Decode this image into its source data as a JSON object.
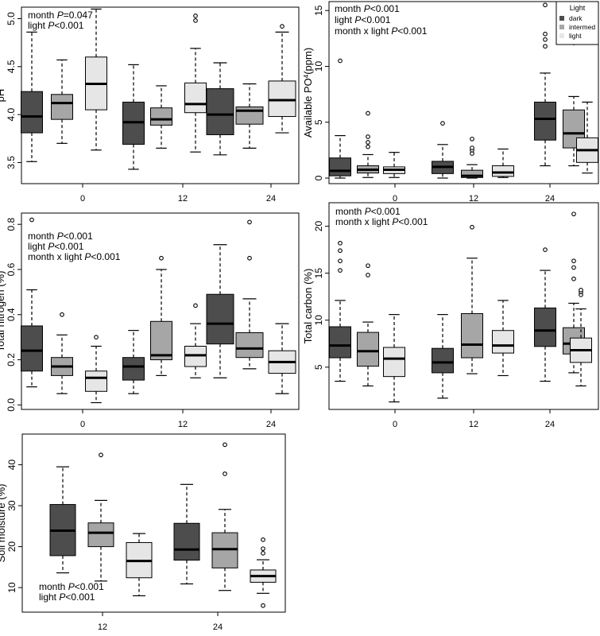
{
  "chart_data": [
    {
      "id": "ph",
      "type": "boxplot",
      "ylabel": "pH",
      "ylim": [
        3.28,
        5.12
      ],
      "yticks": [
        3.5,
        4.0,
        4.5,
        5.0
      ],
      "ytick_labels": [
        "3.5",
        "4.0",
        "4.5",
        "5.0"
      ],
      "xtick_labels": [
        "0",
        "12",
        "24"
      ],
      "annotations": [
        {
          "pre": "month ",
          "p": "P",
          "post": "=0.047"
        },
        {
          "pre": "light ",
          "p": "P",
          "post": "<0.001"
        }
      ],
      "legend": null,
      "groups": [
        {
          "label": "0",
          "boxes": [
            {
              "light": "dark",
              "whislo": 3.51,
              "q1": 3.81,
              "med": 3.98,
              "q3": 4.24,
              "whishi": 4.86,
              "fliers": []
            },
            {
              "light": "intermed",
              "whislo": 3.7,
              "q1": 3.95,
              "med": 4.12,
              "q3": 4.21,
              "whishi": 4.57,
              "fliers": []
            },
            {
              "light": "light",
              "whislo": 3.63,
              "q1": 4.05,
              "med": 4.32,
              "q3": 4.6,
              "whishi": 5.1,
              "fliers": []
            }
          ]
        },
        {
          "label": "12",
          "boxes": [
            {
              "light": "dark",
              "whislo": 3.43,
              "q1": 3.69,
              "med": 3.92,
              "q3": 4.13,
              "whishi": 4.52,
              "fliers": []
            },
            {
              "light": "intermed",
              "whislo": 3.65,
              "q1": 3.89,
              "med": 3.95,
              "q3": 4.07,
              "whishi": 4.3,
              "fliers": []
            },
            {
              "light": "light",
              "whislo": 3.61,
              "q1": 4.02,
              "med": 4.11,
              "q3": 4.33,
              "whishi": 4.69,
              "fliers": [
                4.98,
                5.03
              ]
            }
          ]
        },
        {
          "label": "24",
          "boxes": [
            {
              "light": "dark",
              "whislo": 3.58,
              "q1": 3.79,
              "med": 4.0,
              "q3": 4.27,
              "whishi": 4.54,
              "fliers": []
            },
            {
              "light": "intermed",
              "whislo": 3.65,
              "q1": 3.9,
              "med": 4.04,
              "q3": 4.08,
              "whishi": 4.32,
              "fliers": []
            },
            {
              "light": "light",
              "whislo": 3.81,
              "q1": 3.98,
              "med": 4.15,
              "q3": 4.35,
              "whishi": 4.86,
              "fliers": [
                4.92
              ]
            }
          ]
        }
      ]
    },
    {
      "id": "po4",
      "type": "boxplot",
      "ylabel_main": "Available PO",
      "ylabel_sup": "4",
      "ylabel_tail": "(ppm)",
      "ylim": [
        -0.5,
        15.8
      ],
      "yticks": [
        0,
        5,
        10,
        15
      ],
      "ytick_labels": [
        "0",
        "5",
        "10",
        "15"
      ],
      "xtick_labels": [
        "0",
        "12",
        "24"
      ],
      "annotations": [
        {
          "pre": "month ",
          "p": "P",
          "post": "<0.001"
        },
        {
          "pre": "light ",
          "p": "P",
          "post": "<0.001"
        },
        {
          "pre": "month x light ",
          "p": "P",
          "post": "<0.001"
        }
      ],
      "legend": {
        "title": "Light",
        "items": [
          "dark",
          "intermed",
          "light"
        ]
      },
      "groups": [
        {
          "label": "0",
          "boxes": [
            {
              "light": "dark",
              "whislo": 0.0,
              "q1": 0.2,
              "med": 0.65,
              "q3": 1.8,
              "whishi": 3.8,
              "fliers": [
                10.5
              ]
            },
            {
              "light": "intermed",
              "whislo": 0.05,
              "q1": 0.45,
              "med": 0.75,
              "q3": 1.1,
              "whishi": 2.1,
              "fliers": [
                2.8,
                3.2,
                3.7,
                5.8
              ]
            },
            {
              "light": "light",
              "whislo": 0.05,
              "q1": 0.4,
              "med": 0.75,
              "q3": 1.0,
              "whishi": 2.3,
              "fliers": []
            }
          ]
        },
        {
          "label": "12",
          "boxes": [
            {
              "light": "dark",
              "whislo": 0.0,
              "q1": 0.4,
              "med": 1.0,
              "q3": 1.5,
              "whishi": 3.0,
              "fliers": [
                4.9
              ]
            },
            {
              "light": "intermed",
              "whislo": 0.0,
              "q1": 0.05,
              "med": 0.2,
              "q3": 0.7,
              "whishi": 1.2,
              "fliers": [
                2.2,
                2.5,
                2.7,
                3.5
              ]
            },
            {
              "light": "light",
              "whislo": 0.05,
              "q1": 0.15,
              "med": 0.5,
              "q3": 1.1,
              "whishi": 2.6,
              "fliers": []
            }
          ]
        },
        {
          "label": "24",
          "boxes": [
            {
              "light": "dark",
              "whislo": 1.1,
              "q1": 3.4,
              "med": 5.3,
              "q3": 6.8,
              "whishi": 9.4,
              "fliers": [
                11.8,
                12.4,
                12.9,
                15.5
              ]
            },
            {
              "light": "intermed",
              "whislo": 1.1,
              "q1": 2.7,
              "med": 4.0,
              "q3": 6.1,
              "whishi": 7.3,
              "fliers": [
                12.1,
                14.5
              ]
            },
            {
              "light": "light",
              "whislo": 0.45,
              "q1": 1.4,
              "med": 2.5,
              "q3": 3.6,
              "whishi": 6.8,
              "fliers": []
            }
          ]
        }
      ]
    },
    {
      "id": "nitrogen",
      "type": "boxplot",
      "ylabel": "Total nitrogen (%)",
      "ylim": [
        -0.02,
        0.85
      ],
      "yticks": [
        0.0,
        0.2,
        0.4,
        0.6,
        0.8
      ],
      "ytick_labels": [
        "0.0",
        "0.2",
        "0.4",
        "0.6",
        "0.8"
      ],
      "xtick_labels": [
        "0",
        "12",
        "24"
      ],
      "annotations": [
        {
          "pre": "month ",
          "p": "P",
          "post": "<0.001"
        },
        {
          "pre": "light ",
          "p": "P",
          "post": "<0.001"
        },
        {
          "pre": "month x light ",
          "p": "P",
          "post": "<0.001"
        }
      ],
      "legend": null,
      "groups": [
        {
          "label": "0",
          "boxes": [
            {
              "light": "dark",
              "whislo": 0.08,
              "q1": 0.15,
              "med": 0.24,
              "q3": 0.35,
              "whishi": 0.51,
              "fliers": [
                0.82
              ]
            },
            {
              "light": "intermed",
              "whislo": 0.05,
              "q1": 0.13,
              "med": 0.17,
              "q3": 0.21,
              "whishi": 0.31,
              "fliers": [
                0.4
              ]
            },
            {
              "light": "light",
              "whislo": 0.01,
              "q1": 0.06,
              "med": 0.12,
              "q3": 0.15,
              "whishi": 0.26,
              "fliers": [
                0.3
              ]
            }
          ]
        },
        {
          "label": "12",
          "boxes": [
            {
              "light": "dark",
              "whislo": 0.05,
              "q1": 0.11,
              "med": 0.17,
              "q3": 0.21,
              "whishi": 0.33,
              "fliers": []
            },
            {
              "light": "intermed",
              "whislo": 0.13,
              "q1": 0.2,
              "med": 0.22,
              "q3": 0.37,
              "whishi": 0.6,
              "fliers": [
                0.65
              ]
            },
            {
              "light": "light",
              "whislo": 0.12,
              "q1": 0.17,
              "med": 0.22,
              "q3": 0.26,
              "whishi": 0.36,
              "fliers": [
                0.44
              ]
            }
          ]
        },
        {
          "label": "24",
          "boxes": [
            {
              "light": "dark",
              "whislo": 0.12,
              "q1": 0.27,
              "med": 0.36,
              "q3": 0.49,
              "whishi": 0.71,
              "fliers": []
            },
            {
              "light": "intermed",
              "whislo": 0.16,
              "q1": 0.21,
              "med": 0.25,
              "q3": 0.32,
              "whishi": 0.47,
              "fliers": [
                0.65,
                0.81
              ]
            },
            {
              "light": "light",
              "whislo": 0.05,
              "q1": 0.14,
              "med": 0.19,
              "q3": 0.24,
              "whishi": 0.36,
              "fliers": []
            }
          ]
        }
      ]
    },
    {
      "id": "carbon",
      "type": "boxplot",
      "ylabel": "Total carbon (%)",
      "ylim": [
        0.5,
        22.5
      ],
      "yticks": [
        5,
        10,
        15,
        20
      ],
      "ytick_labels": [
        "5",
        "10",
        "15",
        "20"
      ],
      "xtick_labels": [
        "0",
        "12",
        "24"
      ],
      "annotations": [
        {
          "pre": "month ",
          "p": "P",
          "post": "<0.001"
        },
        {
          "pre": "month x light ",
          "p": "P",
          "post": "<0.001"
        }
      ],
      "legend": null,
      "groups": [
        {
          "label": "0",
          "boxes": [
            {
              "light": "dark",
              "whislo": 3.5,
              "q1": 6.0,
              "med": 7.3,
              "q3": 9.3,
              "whishi": 12.1,
              "fliers": [
                15.3,
                16.3,
                17.4,
                18.2
              ]
            },
            {
              "light": "intermed",
              "whislo": 3.0,
              "q1": 5.1,
              "med": 6.7,
              "q3": 8.7,
              "whishi": 9.8,
              "fliers": [
                14.8,
                15.8
              ]
            },
            {
              "light": "light",
              "whislo": 1.3,
              "q1": 4.0,
              "med": 5.9,
              "q3": 7.1,
              "whishi": 10.6,
              "fliers": []
            }
          ]
        },
        {
          "label": "12",
          "boxes": [
            {
              "light": "dark",
              "whislo": 1.7,
              "q1": 4.4,
              "med": 5.5,
              "q3": 7.0,
              "whishi": 10.6,
              "fliers": []
            },
            {
              "light": "intermed",
              "whislo": 4.3,
              "q1": 6.0,
              "med": 7.4,
              "q3": 10.7,
              "whishi": 16.6,
              "fliers": [
                19.9
              ]
            },
            {
              "light": "light",
              "whislo": 4.1,
              "q1": 6.5,
              "med": 7.3,
              "q3": 8.9,
              "whishi": 12.1,
              "fliers": []
            }
          ]
        },
        {
          "label": "24",
          "boxes": [
            {
              "light": "dark",
              "whislo": 3.5,
              "q1": 7.2,
              "med": 8.9,
              "q3": 11.3,
              "whishi": 15.3,
              "fliers": [
                17.5
              ]
            },
            {
              "light": "intermed",
              "whislo": 4.4,
              "q1": 6.4,
              "med": 7.5,
              "q3": 9.2,
              "whishi": 11.8,
              "fliers": [
                14.4,
                15.6,
                16.3,
                21.3
              ]
            },
            {
              "light": "light",
              "whislo": 3.0,
              "q1": 5.5,
              "med": 6.8,
              "q3": 8.1,
              "whishi": 11.2,
              "fliers": [
                12.7,
                13.0,
                13.2
              ]
            }
          ]
        }
      ]
    },
    {
      "id": "moisture",
      "type": "boxplot",
      "ylabel": "Soil moisture (%)",
      "ylim": [
        4.0,
        47.5
      ],
      "yticks": [
        10,
        20,
        30,
        40
      ],
      "ytick_labels": [
        "10",
        "20",
        "30",
        "40"
      ],
      "xtick_labels": [
        "12",
        "24"
      ],
      "annotations": [
        {
          "pre": "month ",
          "p": "P",
          "post": "<0.001"
        },
        {
          "pre": "light ",
          "p": "P",
          "post": "<0.001"
        }
      ],
      "legend": null,
      "groups": [
        {
          "label": "12",
          "boxes": [
            {
              "light": "dark",
              "whislo": 13.6,
              "q1": 17.8,
              "med": 23.9,
              "q3": 30.3,
              "whishi": 39.5,
              "fliers": []
            },
            {
              "light": "intermed",
              "whislo": 11.6,
              "q1": 20.0,
              "med": 23.4,
              "q3": 25.8,
              "whishi": 31.3,
              "fliers": [
                42.4
              ]
            },
            {
              "light": "light",
              "whislo": 8.0,
              "q1": 12.4,
              "med": 16.5,
              "q3": 21.0,
              "whishi": 23.2,
              "fliers": []
            }
          ]
        },
        {
          "label": "24",
          "boxes": [
            {
              "light": "dark",
              "whislo": 10.9,
              "q1": 16.7,
              "med": 19.3,
              "q3": 25.7,
              "whishi": 35.2,
              "fliers": []
            },
            {
              "light": "intermed",
              "whislo": 9.3,
              "q1": 14.8,
              "med": 19.4,
              "q3": 23.4,
              "whishi": 29.1,
              "fliers": [
                37.8,
                44.9
              ]
            },
            {
              "light": "light",
              "whislo": 8.6,
              "q1": 11.3,
              "med": 12.8,
              "q3": 14.3,
              "whishi": 16.8,
              "fliers": [
                5.6,
                18.4,
                19.5,
                21.7
              ]
            }
          ]
        }
      ]
    }
  ],
  "colors": {
    "dark": "#4d4d4d",
    "intermed": "#a6a6a6",
    "light": "#e6e6e6"
  }
}
